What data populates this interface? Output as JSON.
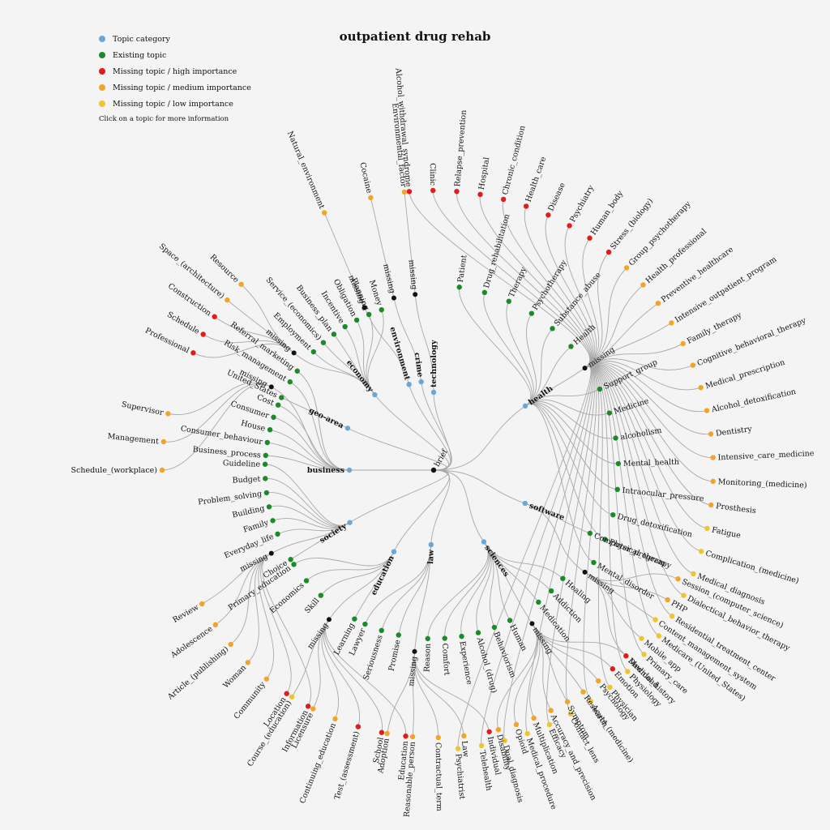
{
  "title": "outpatient drug rehab",
  "legend": [
    {
      "label": "Topic category",
      "color": "#6ba7d6"
    },
    {
      "label": "Existing topic",
      "color": "#1d8a2a"
    },
    {
      "label": "Missing topic / high importance",
      "color": "#e01c1c"
    },
    {
      "label": "Missing topic / medium importance",
      "color": "#f0a52a"
    },
    {
      "label": "Missing topic / low importance",
      "color": "#ecc62c"
    }
  ],
  "note": "Click on a topic for more information",
  "colors": {
    "category": "#6ba7d6",
    "existing": "#1d8a2a",
    "high": "#e01c1c",
    "medium": "#f0a52a",
    "low": "#ecc62c",
    "missing_hub": "#111111",
    "link": "#a8a8a8",
    "highlight_text": "#2a9a2a"
  },
  "tree": {
    "root": "brief",
    "categories": [
      {
        "name": "health",
        "children": [
          {
            "label": "Patient",
            "status": "existing"
          },
          {
            "label": "Drug_rehabilitation",
            "status": "existing"
          },
          {
            "label": "Therapy",
            "status": "existing"
          },
          {
            "label": "Psychotherapy",
            "status": "existing"
          },
          {
            "label": "Substance_abuse",
            "status": "existing"
          },
          {
            "label": "Health",
            "status": "existing"
          },
          {
            "label": "missing",
            "status": "hub",
            "children": [
              {
                "label": "Alcohol_withdrawal_syndrome",
                "status": "high"
              },
              {
                "label": "Clinic",
                "status": "high"
              },
              {
                "label": "Relapse_prevention",
                "status": "high"
              },
              {
                "label": "Hospital",
                "status": "high"
              },
              {
                "label": "Chronic_condition",
                "status": "high"
              },
              {
                "label": "Health_care",
                "status": "high"
              },
              {
                "label": "Disease",
                "status": "high"
              },
              {
                "label": "Psychiatry",
                "status": "high"
              },
              {
                "label": "Human_body",
                "status": "high"
              },
              {
                "label": "Stress_(biology)",
                "status": "high"
              },
              {
                "label": "Group_psychotherapy",
                "status": "medium"
              },
              {
                "label": "Health_professional",
                "status": "medium"
              },
              {
                "label": "Preventive_healthcare",
                "status": "medium"
              },
              {
                "label": "Intensive_outpatient_program",
                "status": "medium"
              },
              {
                "label": "Family_therapy",
                "status": "medium"
              },
              {
                "label": "Cognitive_behavioral_therapy",
                "status": "medium"
              },
              {
                "label": "Medical_prescription",
                "status": "medium"
              },
              {
                "label": "Alcohol_detoxification",
                "status": "medium"
              },
              {
                "label": "Dentistry",
                "status": "medium"
              },
              {
                "label": "Intensive_care_medicine",
                "status": "medium"
              },
              {
                "label": "Monitoring_(medicine)",
                "status": "medium"
              },
              {
                "label": "Prosthesis",
                "status": "medium"
              },
              {
                "label": "Fatigue",
                "status": "low"
              },
              {
                "label": "Complication_(medicine)",
                "status": "low"
              },
              {
                "label": "Medical_diagnosis",
                "status": "low"
              },
              {
                "label": "Dialectical_behavior_therapy",
                "status": "low"
              },
              {
                "label": "Residential_treatment_center",
                "status": "low"
              },
              {
                "label": "Medicare_(United_States)",
                "status": "low"
              },
              {
                "label": "Primary_care",
                "status": "low"
              },
              {
                "label": "Physiology",
                "status": "low"
              },
              {
                "label": "Physician",
                "status": "low"
              },
              {
                "label": "Acute_(medicine)",
                "status": "low"
              },
              {
                "label": "Contact_lens",
                "status": "low"
              },
              {
                "label": "Efficacy",
                "status": "low"
              },
              {
                "label": "Medical_procedure",
                "status": "low"
              },
              {
                "label": "Dual_diagnosis",
                "status": "low"
              },
              {
                "label": "Telehealth",
                "status": "low"
              },
              {
                "label": "Psychiatrist",
                "status": "low"
              }
            ]
          },
          {
            "label": "Support_group",
            "status": "existing"
          },
          {
            "label": "Medicine",
            "status": "existing"
          },
          {
            "label": "alcoholism",
            "status": "existing"
          },
          {
            "label": "Mental_health",
            "status": "existing"
          },
          {
            "label": "Intraocular_pressure",
            "status": "existing"
          },
          {
            "label": "Drug_detoxification",
            "status": "existing"
          },
          {
            "label": "Physical_therapy",
            "status": "existing"
          },
          {
            "label": "Mental_disorder",
            "status": "existing"
          }
        ]
      },
      {
        "name": "software",
        "children": [
          {
            "label": "Computer_program",
            "status": "existing"
          },
          {
            "label": "missing",
            "status": "hub",
            "children": [
              {
                "label": "Session_(computer_science)",
                "status": "medium"
              },
              {
                "label": "PHP",
                "status": "medium"
              },
              {
                "label": "Content_management_system",
                "status": "low"
              },
              {
                "label": "Mobile_app",
                "status": "low"
              },
              {
                "label": "Download",
                "status": "low"
              }
            ]
          }
        ]
      },
      {
        "name": "sciences",
        "children": [
          {
            "label": "Healing",
            "status": "existing"
          },
          {
            "label": "Addiction",
            "status": "existing"
          },
          {
            "label": "Medication",
            "status": "existing"
          },
          {
            "label": "missing",
            "status": "hub",
            "children": [
              {
                "label": "Medical_history",
                "status": "high"
              },
              {
                "label": "Emotion",
                "status": "high"
              },
              {
                "label": "Psychology",
                "status": "medium"
              },
              {
                "label": "Research",
                "status": "medium"
              },
              {
                "label": "Symptom",
                "status": "medium"
              },
              {
                "label": "Accuracy_and_precision",
                "status": "medium"
              },
              {
                "label": "Multiplication",
                "status": "medium"
              },
              {
                "label": "Opioid",
                "status": "medium"
              },
              {
                "label": "Disability",
                "status": "medium"
              }
            ]
          },
          {
            "label": "Human",
            "status": "existing"
          },
          {
            "label": "Behaviorism",
            "status": "existing"
          },
          {
            "label": "Alcohol_(drug)",
            "status": "existing"
          },
          {
            "label": "Experience",
            "status": "existing"
          },
          {
            "label": "Comfort",
            "status": "existing"
          },
          {
            "label": "Reason",
            "status": "existing"
          }
        ]
      },
      {
        "name": "law",
        "children": [
          {
            "label": "missing",
            "status": "hub",
            "children": [
              {
                "label": "Individual",
                "status": "high"
              },
              {
                "label": "Law",
                "status": "medium"
              },
              {
                "label": "Contractual_term",
                "status": "medium"
              },
              {
                "label": "Reasonable_person",
                "status": "medium"
              },
              {
                "label": "Adoption",
                "status": "medium"
              }
            ]
          },
          {
            "label": "Promise",
            "status": "existing"
          },
          {
            "label": "Seriousness",
            "status": "existing"
          },
          {
            "label": "Lawyer",
            "status": "existing"
          }
        ]
      },
      {
        "name": "education",
        "children": [
          {
            "label": "Learning",
            "status": "existing"
          },
          {
            "label": "missing",
            "status": "hub",
            "children": [
              {
                "label": "Education",
                "status": "high"
              },
              {
                "label": "School",
                "status": "high"
              },
              {
                "label": "Test_(assessment)",
                "status": "high"
              },
              {
                "label": "Continuing_education",
                "status": "medium"
              },
              {
                "label": "Licensure",
                "status": "medium"
              },
              {
                "label": "Course_(education)",
                "status": "low"
              }
            ]
          },
          {
            "label": "Skill",
            "status": "existing"
          },
          {
            "label": "Economics",
            "status": "existing"
          },
          {
            "label": "Primary_education",
            "status": "existing"
          }
        ]
      },
      {
        "name": "society",
        "children": [
          {
            "label": "Choice",
            "status": "existing"
          },
          {
            "label": "missing",
            "status": "hub",
            "children": [
              {
                "label": "Information",
                "status": "high"
              },
              {
                "label": "Location",
                "status": "high"
              },
              {
                "label": "Community",
                "status": "medium"
              },
              {
                "label": "Woman",
                "status": "medium"
              },
              {
                "label": "Article_(publishing)",
                "status": "medium"
              },
              {
                "label": "Adolescence",
                "status": "medium"
              },
              {
                "label": "Review",
                "status": "medium"
              }
            ]
          },
          {
            "label": "Everyday_life",
            "status": "existing"
          },
          {
            "label": "Family",
            "status": "existing"
          },
          {
            "label": "Building",
            "status": "existing"
          },
          {
            "label": "Problem_solving",
            "status": "existing"
          },
          {
            "label": "Budget",
            "status": "existing"
          },
          {
            "label": "Guideline",
            "status": "existing"
          }
        ]
      },
      {
        "name": "business",
        "children": [
          {
            "label": "Business_process",
            "status": "existing"
          },
          {
            "label": "Consumer_behaviour",
            "status": "existing"
          },
          {
            "label": "House",
            "status": "existing"
          },
          {
            "label": "Consumer",
            "status": "existing"
          },
          {
            "label": "Cost",
            "status": "existing"
          },
          {
            "label": "missing",
            "status": "hub",
            "children": [
              {
                "label": "Schedule_(workplace)",
                "status": "medium"
              },
              {
                "label": "Management",
                "status": "medium"
              },
              {
                "label": "Supervisor",
                "status": "medium"
              }
            ]
          },
          {
            "label": "Risk_management",
            "status": "existing"
          },
          {
            "label": "Referral_marketing",
            "status": "existing"
          }
        ]
      },
      {
        "name": "geo-area",
        "children": [
          {
            "label": "United_States",
            "status": "existing",
            "highlight": true
          }
        ]
      },
      {
        "name": "economy",
        "children": [
          {
            "label": "missing",
            "status": "hub",
            "children": [
              {
                "label": "Professional",
                "status": "high"
              },
              {
                "label": "Schedule",
                "status": "high"
              },
              {
                "label": "Construction",
                "status": "high"
              },
              {
                "label": "Space_(architecture)",
                "status": "medium"
              },
              {
                "label": "Resource",
                "status": "medium"
              }
            ]
          },
          {
            "label": "Employment",
            "status": "existing"
          },
          {
            "label": "Service_(economics)",
            "status": "existing"
          },
          {
            "label": "Business_plan",
            "status": "existing"
          },
          {
            "label": "Incentive",
            "status": "existing"
          },
          {
            "label": "Obligation",
            "status": "existing"
          },
          {
            "label": "Planning",
            "status": "existing"
          },
          {
            "label": "Money",
            "status": "existing"
          }
        ]
      },
      {
        "name": "environment",
        "children": [
          {
            "label": "missing",
            "status": "hub",
            "children": [
              {
                "label": "Natural_environment",
                "status": "medium"
              }
            ]
          }
        ]
      },
      {
        "name": "crime",
        "children": [
          {
            "label": "missing",
            "status": "hub",
            "children": [
              {
                "label": "Cocaine",
                "status": "medium"
              }
            ]
          }
        ]
      },
      {
        "name": "technology",
        "children": [
          {
            "label": "missing",
            "status": "hub",
            "children": [
              {
                "label": "Environmental_factor",
                "status": "medium"
              }
            ]
          }
        ]
      }
    ]
  }
}
